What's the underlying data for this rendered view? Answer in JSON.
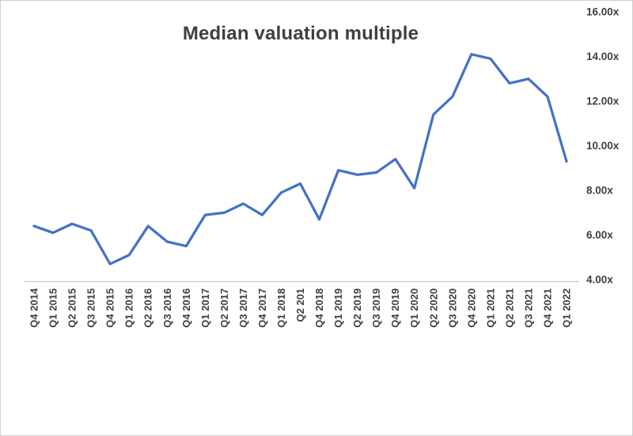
{
  "chart_data": {
    "type": "line",
    "title": "Median valuation multiple",
    "categories": [
      "Q4 2014",
      "Q1 2015",
      "Q2 2015",
      "Q3 2015",
      "Q4 2015",
      "Q1 2016",
      "Q2 2016",
      "Q3 2016",
      "Q4 2016",
      "Q1 2017",
      "Q2 2017",
      "Q3 2017",
      "Q4 2017",
      "Q1 2018",
      "Q2 201",
      "Q4 2018",
      "Q1 2019",
      "Q2 2019",
      "Q3 2019",
      "Q4 2019",
      "Q1 2020",
      "Q2 2020",
      "Q3 2020",
      "Q4 2020",
      "Q1 2021",
      "Q2 2021",
      "Q3 2021",
      "Q4 2021",
      "Q1 2022"
    ],
    "values": [
      6.4,
      6.1,
      6.5,
      6.2,
      4.7,
      5.1,
      6.4,
      5.7,
      5.5,
      6.9,
      7.0,
      7.4,
      6.9,
      7.9,
      8.3,
      6.7,
      8.9,
      8.7,
      8.8,
      9.4,
      8.1,
      11.4,
      12.2,
      14.1,
      13.9,
      12.8,
      13.0,
      12.2,
      9.3
    ],
    "xlabel": "",
    "ylabel": "",
    "ylim": [
      4,
      16
    ],
    "y_tick_values": [
      16,
      14,
      12,
      10,
      8,
      6,
      4
    ],
    "y_tick_labels": [
      "16.00x",
      "14.00x",
      "12.00x",
      "10.00x",
      "8.00x",
      "6.00x",
      "4.00x"
    ],
    "grid": false,
    "legend_position": "none",
    "line_color": "#4472C4",
    "axis_color": "#bfbfbf",
    "label_color": "#404040"
  }
}
